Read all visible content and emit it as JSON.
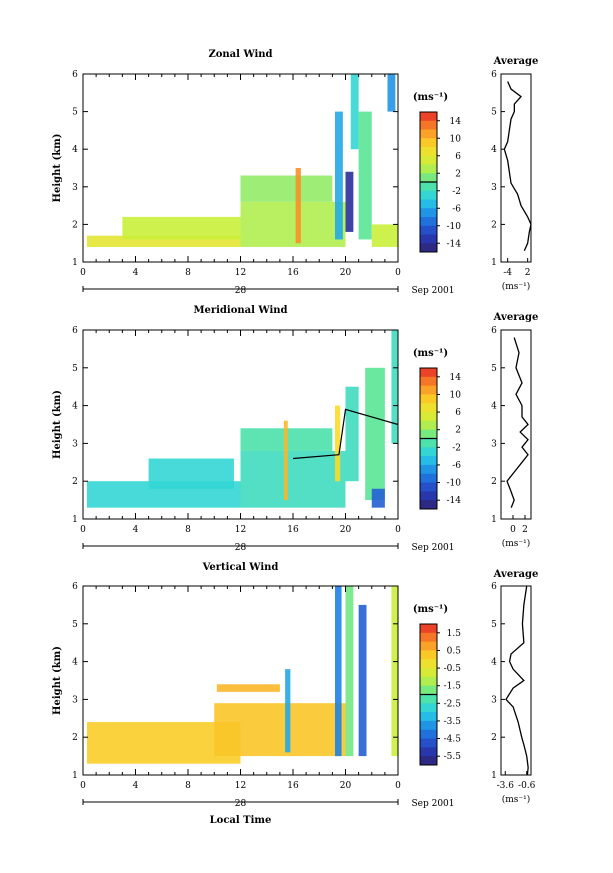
{
  "x_axis_label": "Local Time",
  "date_label": "Sep 2001",
  "day_label": "28",
  "x_ticks": [
    "0",
    "4",
    "8",
    "12",
    "16",
    "20",
    "0"
  ],
  "y_ticks": [
    "1",
    "2",
    "3",
    "4",
    "5",
    "6"
  ],
  "chart_data": [
    {
      "type": "heatmap",
      "title": "Zonal Wind",
      "xlabel": "",
      "ylabel": "Height (km)",
      "xlim": [
        0,
        24
      ],
      "ylim": [
        1,
        6
      ],
      "colorbar": {
        "title": "(ms⁻¹)",
        "ticks": [
          "14",
          "10",
          "6",
          "2",
          "-2",
          "-6",
          "-10",
          "-14"
        ],
        "range": [
          -16,
          16
        ]
      },
      "cells": [
        {
          "t0": 0.3,
          "t1": 12,
          "h0": 1.4,
          "h1": 1.7,
          "v": 6
        },
        {
          "t0": 3,
          "t1": 12,
          "h0": 1.6,
          "h1": 2.2,
          "v": 4
        },
        {
          "t0": 12,
          "t1": 20,
          "h0": 1.4,
          "h1": 2.6,
          "v": 3
        },
        {
          "t0": 12,
          "t1": 19,
          "h0": 2.6,
          "h1": 3.3,
          "v": 2
        },
        {
          "t0": 16.2,
          "t1": 16.6,
          "h0": 1.5,
          "h1": 3.5,
          "v": 12
        },
        {
          "t0": 19.2,
          "t1": 19.8,
          "h0": 1.6,
          "h1": 5.0,
          "v": -6
        },
        {
          "t0": 20,
          "t1": 20.6,
          "h0": 1.8,
          "h1": 3.4,
          "v": -14
        },
        {
          "t0": 20.4,
          "t1": 21,
          "h0": 4.0,
          "h1": 6.0,
          "v": -3
        },
        {
          "t0": 21,
          "t1": 22,
          "h0": 1.6,
          "h1": 5.0,
          "v": 0
        },
        {
          "t0": 23.2,
          "t1": 23.8,
          "h0": 5.0,
          "h1": 6.0,
          "v": -7
        },
        {
          "t0": 22,
          "t1": 24,
          "h0": 1.4,
          "h1": 2.0,
          "v": 4
        }
      ],
      "lines": [],
      "average": {
        "title": "Average",
        "xlabel": "(ms⁻¹)",
        "x_ticks": [
          "-4",
          "2"
        ],
        "xlim": [
          -6,
          3
        ],
        "height": [
          1.3,
          1.5,
          1.8,
          2.0,
          2.2,
          2.5,
          2.8,
          3.1,
          3.4,
          3.7,
          4.0,
          4.2,
          4.5,
          4.8,
          5.0,
          5.2,
          5.4,
          5.6,
          5.8
        ],
        "value": [
          1.0,
          2.0,
          2.5,
          3.0,
          2.0,
          0.0,
          -1.0,
          -3.0,
          -3.5,
          -4.0,
          -5.0,
          -4.0,
          -3.5,
          -3.0,
          -2.0,
          -2.0,
          0.0,
          -3.0,
          -4.0
        ]
      }
    },
    {
      "type": "heatmap",
      "title": "Meridional Wind",
      "xlabel": "",
      "ylabel": "Height (km)",
      "xlim": [
        0,
        24
      ],
      "ylim": [
        1,
        6
      ],
      "colorbar": {
        "title": "(ms⁻¹)",
        "ticks": [
          "14",
          "10",
          "6",
          "2",
          "-2",
          "-6",
          "-10",
          "-14"
        ],
        "range": [
          -16,
          16
        ]
      },
      "cells": [
        {
          "t0": 0.3,
          "t1": 12,
          "h0": 1.3,
          "h1": 2.0,
          "v": -3
        },
        {
          "t0": 5,
          "t1": 11.5,
          "h0": 1.8,
          "h1": 2.6,
          "v": -3
        },
        {
          "t0": 12,
          "t1": 20,
          "h0": 1.3,
          "h1": 2.8,
          "v": -2
        },
        {
          "t0": 12,
          "t1": 19,
          "h0": 2.8,
          "h1": 3.4,
          "v": -1
        },
        {
          "t0": 15.3,
          "t1": 15.6,
          "h0": 1.5,
          "h1": 3.6,
          "v": 10
        },
        {
          "t0": 19.2,
          "t1": 19.6,
          "h0": 2.0,
          "h1": 4.0,
          "v": 8
        },
        {
          "t0": 20,
          "t1": 21,
          "h0": 2.0,
          "h1": 4.5,
          "v": -2
        },
        {
          "t0": 21.5,
          "t1": 23,
          "h0": 1.5,
          "h1": 5.0,
          "v": 0
        },
        {
          "t0": 23.5,
          "t1": 24,
          "h0": 3.0,
          "h1": 6.0,
          "v": -2
        },
        {
          "t0": 22,
          "t1": 23,
          "h0": 1.3,
          "h1": 1.8,
          "v": -10
        }
      ],
      "lines": [
        {
          "x": [
            16,
            19.5,
            20,
            24
          ],
          "y": [
            2.6,
            2.7,
            3.9,
            3.5
          ]
        }
      ],
      "average": {
        "title": "Average",
        "xlabel": "(ms⁻¹)",
        "x_ticks": [
          "0",
          "2"
        ],
        "xlim": [
          -2,
          3
        ],
        "height": [
          1.3,
          1.5,
          1.8,
          2.0,
          2.3,
          2.5,
          2.7,
          2.9,
          3.1,
          3.3,
          3.5,
          3.7,
          4.0,
          4.3,
          4.6,
          5.0,
          5.4,
          5.8
        ],
        "value": [
          -0.3,
          0.2,
          -0.5,
          -1.0,
          0.5,
          1.5,
          2.5,
          1.5,
          2.5,
          1.2,
          2.5,
          1.5,
          1.5,
          0.5,
          1.5,
          0.5,
          1.0,
          0.2
        ]
      }
    },
    {
      "type": "heatmap",
      "title": "Vertical Wind",
      "xlabel": "Local Time",
      "ylabel": "Height (km)",
      "xlim": [
        0,
        24
      ],
      "ylim": [
        1,
        6
      ],
      "colorbar": {
        "title": "(ms⁻¹)",
        "ticks": [
          "1.5",
          "0.5",
          "-0.5",
          "-1.5",
          "-2.5",
          "-3.5",
          "-4.5",
          "-5.5"
        ],
        "range": [
          -6.0,
          2.0
        ]
      },
      "cells": [
        {
          "t0": 0.3,
          "t1": 12,
          "h0": 1.3,
          "h1": 2.4,
          "v": 0.2
        },
        {
          "t0": 10,
          "t1": 20,
          "h0": 1.5,
          "h1": 2.9,
          "v": 0.3
        },
        {
          "t0": 10.2,
          "t1": 15,
          "h0": 3.2,
          "h1": 3.4,
          "v": 0.5
        },
        {
          "t0": 15.4,
          "t1": 15.8,
          "h0": 1.6,
          "h1": 3.8,
          "v": -3.5
        },
        {
          "t0": 19.2,
          "t1": 19.7,
          "h0": 1.5,
          "h1": 6.0,
          "v": -4.0
        },
        {
          "t0": 20,
          "t1": 20.6,
          "h0": 1.5,
          "h1": 6.0,
          "v": -1.8
        },
        {
          "t0": 21,
          "t1": 21.6,
          "h0": 1.5,
          "h1": 5.5,
          "v": -4.5
        },
        {
          "t0": 23.5,
          "t1": 24,
          "h0": 1.5,
          "h1": 6.0,
          "v": -1.0
        }
      ],
      "lines": [],
      "average": {
        "title": "Average",
        "xlabel": "(ms⁻¹)",
        "x_ticks": [
          "-3.6",
          "-0.6"
        ],
        "xlim": [
          -4.2,
          0.0
        ],
        "height": [
          1.0,
          1.2,
          1.5,
          1.8,
          2.0,
          2.4,
          2.8,
          3.0,
          3.3,
          3.5,
          3.8,
          4.0,
          4.2,
          4.5,
          5.0,
          5.5,
          6.0
        ],
        "value": [
          -0.5,
          -0.4,
          -0.6,
          -1.0,
          -1.3,
          -1.8,
          -2.5,
          -3.5,
          -2.5,
          -1.0,
          -2.5,
          -3.0,
          -2.8,
          -1.0,
          -1.2,
          -1.0,
          -0.6
        ]
      }
    }
  ]
}
